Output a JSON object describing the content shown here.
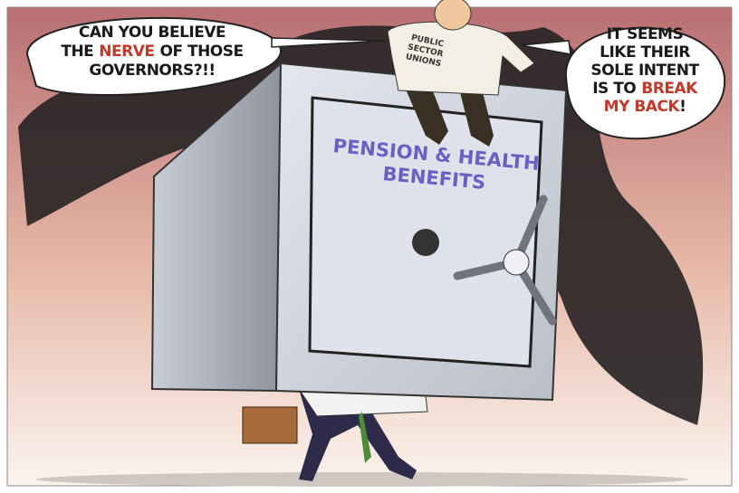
{
  "left_bubble": {
    "lines": [
      [
        {
          "text": "CAN YOU BELIEVE"
        }
      ],
      [
        {
          "text": "THE"
        },
        {
          "text": "NERVE",
          "color": "#c0392b"
        },
        {
          "text": "OF THOSE"
        }
      ],
      [
        {
          "text": "GOVERNORS?!!"
        }
      ]
    ]
  },
  "right_bubble": {
    "lines": [
      [
        {
          "text": "IT SEEMS"
        }
      ],
      [
        {
          "text": "LIKE THEIR"
        }
      ],
      [
        {
          "text": "SOLE INTENT"
        }
      ],
      [
        {
          "text": "IS TO"
        },
        {
          "text": "BREAK",
          "color": "#c0392b"
        }
      ],
      [
        {
          "text": "MY BACK",
          "color": "#c0392b"
        },
        {
          "text": "!"
        }
      ]
    ]
  },
  "safe_label": {
    "lines": [
      "PENSION & HEALTH",
      "BENEFITS"
    ]
  },
  "shirt_label": {
    "lines": [
      "PUBLIC",
      "SECTOR",
      "UNIONS"
    ]
  }
}
